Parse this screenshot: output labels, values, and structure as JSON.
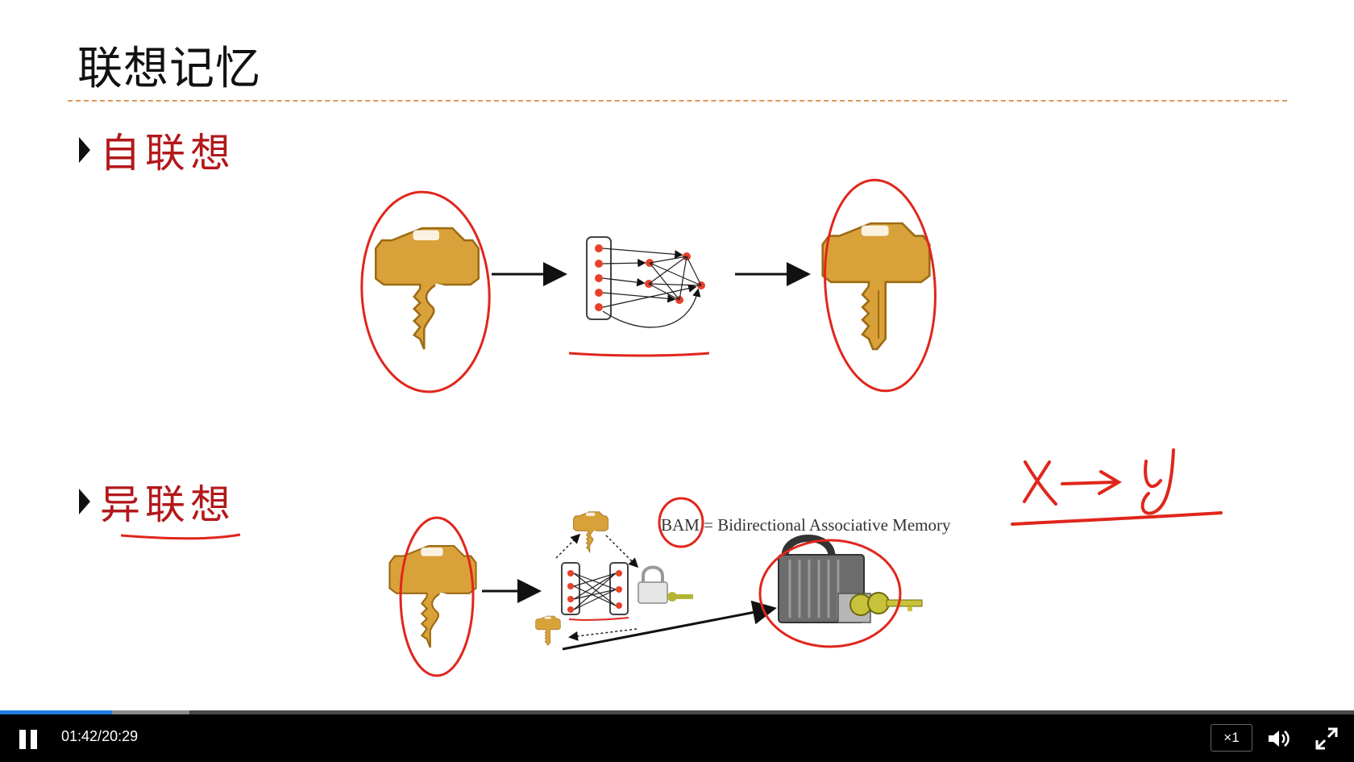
{
  "slide": {
    "title": "联想记忆",
    "bullets": [
      {
        "label": "自联想"
      },
      {
        "label": "异联想"
      }
    ],
    "bam_caption": "BAM = Bidirectional Associative Memory",
    "handwriting": "x → y"
  },
  "player": {
    "current_time": "01:42",
    "duration": "20:29",
    "speed": "×1",
    "progress": 0.083,
    "buffered": 0.14,
    "accent_color": "#1e7de0"
  },
  "colors": {
    "bullet_text": "#b3181b",
    "annotation": "#e0261c",
    "key_gold": "#d9a13a"
  }
}
